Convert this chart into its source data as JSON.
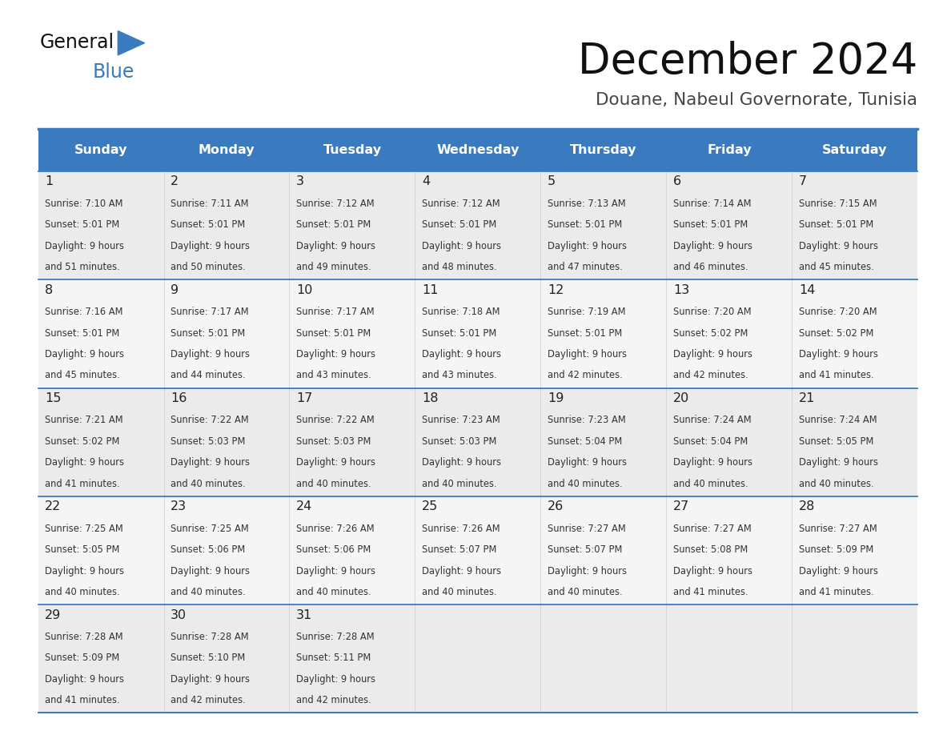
{
  "title": "December 2024",
  "subtitle": "Douane, Nabeul Governorate, Tunisia",
  "header_color": "#3a7bbf",
  "header_text_color": "#ffffff",
  "text_color": "#333333",
  "day_num_color": "#222222",
  "border_color": "#3a7bbf",
  "cell_bg_even": "#ebebeb",
  "cell_bg_odd": "#f5f5f5",
  "days_of_week": [
    "Sunday",
    "Monday",
    "Tuesday",
    "Wednesday",
    "Thursday",
    "Friday",
    "Saturday"
  ],
  "weeks": [
    [
      {
        "day": 1,
        "sunrise": "7:10 AM",
        "sunset": "5:01 PM",
        "dl1": "Daylight: 9 hours",
        "dl2": "and 51 minutes."
      },
      {
        "day": 2,
        "sunrise": "7:11 AM",
        "sunset": "5:01 PM",
        "dl1": "Daylight: 9 hours",
        "dl2": "and 50 minutes."
      },
      {
        "day": 3,
        "sunrise": "7:12 AM",
        "sunset": "5:01 PM",
        "dl1": "Daylight: 9 hours",
        "dl2": "and 49 minutes."
      },
      {
        "day": 4,
        "sunrise": "7:12 AM",
        "sunset": "5:01 PM",
        "dl1": "Daylight: 9 hours",
        "dl2": "and 48 minutes."
      },
      {
        "day": 5,
        "sunrise": "7:13 AM",
        "sunset": "5:01 PM",
        "dl1": "Daylight: 9 hours",
        "dl2": "and 47 minutes."
      },
      {
        "day": 6,
        "sunrise": "7:14 AM",
        "sunset": "5:01 PM",
        "dl1": "Daylight: 9 hours",
        "dl2": "and 46 minutes."
      },
      {
        "day": 7,
        "sunrise": "7:15 AM",
        "sunset": "5:01 PM",
        "dl1": "Daylight: 9 hours",
        "dl2": "and 45 minutes."
      }
    ],
    [
      {
        "day": 8,
        "sunrise": "7:16 AM",
        "sunset": "5:01 PM",
        "dl1": "Daylight: 9 hours",
        "dl2": "and 45 minutes."
      },
      {
        "day": 9,
        "sunrise": "7:17 AM",
        "sunset": "5:01 PM",
        "dl1": "Daylight: 9 hours",
        "dl2": "and 44 minutes."
      },
      {
        "day": 10,
        "sunrise": "7:17 AM",
        "sunset": "5:01 PM",
        "dl1": "Daylight: 9 hours",
        "dl2": "and 43 minutes."
      },
      {
        "day": 11,
        "sunrise": "7:18 AM",
        "sunset": "5:01 PM",
        "dl1": "Daylight: 9 hours",
        "dl2": "and 43 minutes."
      },
      {
        "day": 12,
        "sunrise": "7:19 AM",
        "sunset": "5:01 PM",
        "dl1": "Daylight: 9 hours",
        "dl2": "and 42 minutes."
      },
      {
        "day": 13,
        "sunrise": "7:20 AM",
        "sunset": "5:02 PM",
        "dl1": "Daylight: 9 hours",
        "dl2": "and 42 minutes."
      },
      {
        "day": 14,
        "sunrise": "7:20 AM",
        "sunset": "5:02 PM",
        "dl1": "Daylight: 9 hours",
        "dl2": "and 41 minutes."
      }
    ],
    [
      {
        "day": 15,
        "sunrise": "7:21 AM",
        "sunset": "5:02 PM",
        "dl1": "Daylight: 9 hours",
        "dl2": "and 41 minutes."
      },
      {
        "day": 16,
        "sunrise": "7:22 AM",
        "sunset": "5:03 PM",
        "dl1": "Daylight: 9 hours",
        "dl2": "and 40 minutes."
      },
      {
        "day": 17,
        "sunrise": "7:22 AM",
        "sunset": "5:03 PM",
        "dl1": "Daylight: 9 hours",
        "dl2": "and 40 minutes."
      },
      {
        "day": 18,
        "sunrise": "7:23 AM",
        "sunset": "5:03 PM",
        "dl1": "Daylight: 9 hours",
        "dl2": "and 40 minutes."
      },
      {
        "day": 19,
        "sunrise": "7:23 AM",
        "sunset": "5:04 PM",
        "dl1": "Daylight: 9 hours",
        "dl2": "and 40 minutes."
      },
      {
        "day": 20,
        "sunrise": "7:24 AM",
        "sunset": "5:04 PM",
        "dl1": "Daylight: 9 hours",
        "dl2": "and 40 minutes."
      },
      {
        "day": 21,
        "sunrise": "7:24 AM",
        "sunset": "5:05 PM",
        "dl1": "Daylight: 9 hours",
        "dl2": "and 40 minutes."
      }
    ],
    [
      {
        "day": 22,
        "sunrise": "7:25 AM",
        "sunset": "5:05 PM",
        "dl1": "Daylight: 9 hours",
        "dl2": "and 40 minutes."
      },
      {
        "day": 23,
        "sunrise": "7:25 AM",
        "sunset": "5:06 PM",
        "dl1": "Daylight: 9 hours",
        "dl2": "and 40 minutes."
      },
      {
        "day": 24,
        "sunrise": "7:26 AM",
        "sunset": "5:06 PM",
        "dl1": "Daylight: 9 hours",
        "dl2": "and 40 minutes."
      },
      {
        "day": 25,
        "sunrise": "7:26 AM",
        "sunset": "5:07 PM",
        "dl1": "Daylight: 9 hours",
        "dl2": "and 40 minutes."
      },
      {
        "day": 26,
        "sunrise": "7:27 AM",
        "sunset": "5:07 PM",
        "dl1": "Daylight: 9 hours",
        "dl2": "and 40 minutes."
      },
      {
        "day": 27,
        "sunrise": "7:27 AM",
        "sunset": "5:08 PM",
        "dl1": "Daylight: 9 hours",
        "dl2": "and 41 minutes."
      },
      {
        "day": 28,
        "sunrise": "7:27 AM",
        "sunset": "5:09 PM",
        "dl1": "Daylight: 9 hours",
        "dl2": "and 41 minutes."
      }
    ],
    [
      {
        "day": 29,
        "sunrise": "7:28 AM",
        "sunset": "5:09 PM",
        "dl1": "Daylight: 9 hours",
        "dl2": "and 41 minutes."
      },
      {
        "day": 30,
        "sunrise": "7:28 AM",
        "sunset": "5:10 PM",
        "dl1": "Daylight: 9 hours",
        "dl2": "and 42 minutes."
      },
      {
        "day": 31,
        "sunrise": "7:28 AM",
        "sunset": "5:11 PM",
        "dl1": "Daylight: 9 hours",
        "dl2": "and 42 minutes."
      },
      null,
      null,
      null,
      null
    ]
  ],
  "logo_color_general": "#111111",
  "logo_color_blue": "#3a7bbf",
  "fig_width": 11.88,
  "fig_height": 9.18,
  "dpi": 100
}
